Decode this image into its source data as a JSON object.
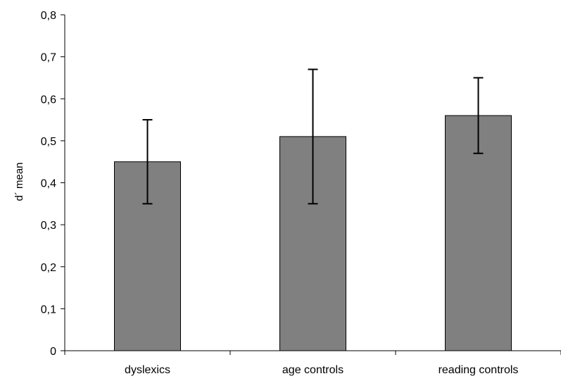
{
  "chart_data": {
    "type": "bar",
    "title": "",
    "xlabel": "",
    "ylabel": "d´ mean",
    "categories": [
      "dyslexics",
      "age controls",
      "reading controls"
    ],
    "values": [
      0.45,
      0.51,
      0.56
    ],
    "error_low": [
      0.35,
      0.35,
      0.47
    ],
    "error_high": [
      0.55,
      0.67,
      0.65
    ],
    "ylim": [
      0,
      0.8
    ],
    "yticks": [
      0,
      0.1,
      0.2,
      0.3,
      0.4,
      0.5,
      0.6,
      0.7,
      0.8
    ],
    "ytick_labels": [
      "0",
      "0,1",
      "0,2",
      "0,3",
      "0,4",
      "0,5",
      "0,6",
      "0,7",
      "0,8"
    ],
    "grid": false,
    "legend": "none",
    "bar_color": "#808080",
    "bar_edge_color": "#000000"
  }
}
